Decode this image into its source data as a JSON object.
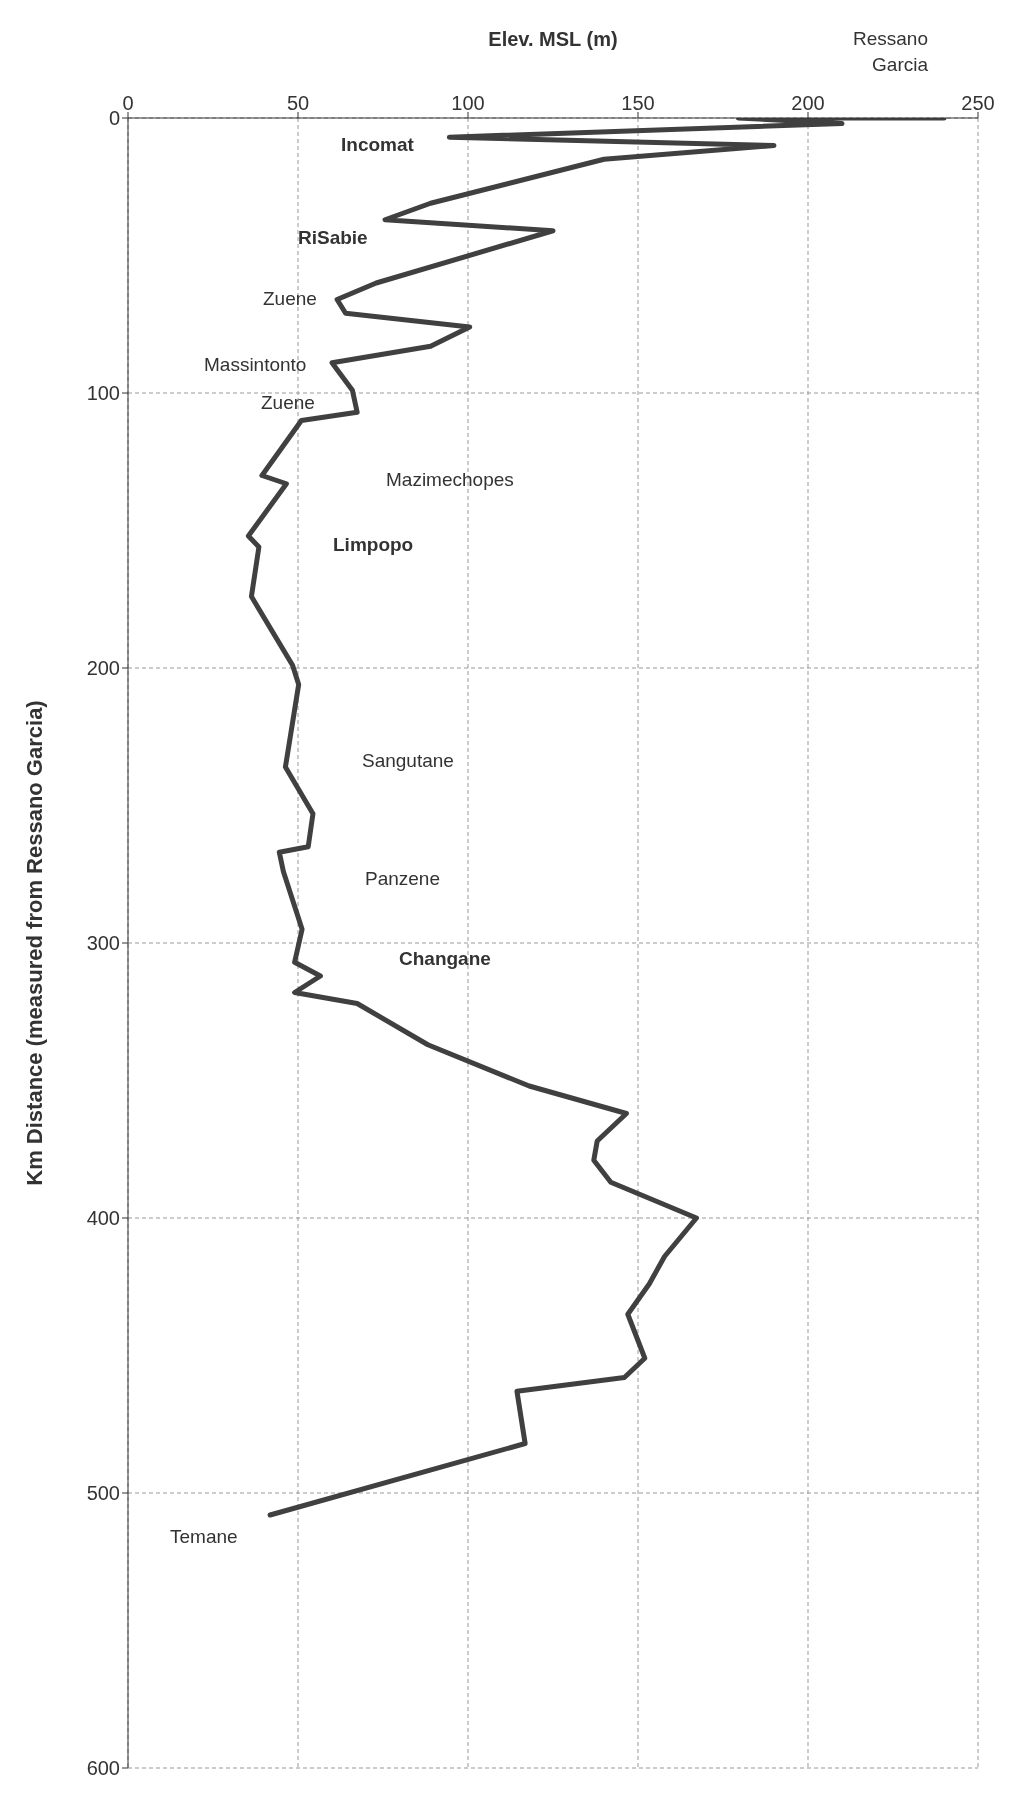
{
  "chart_data": {
    "type": "line",
    "xlabel": "Elev. MSL (m)",
    "ylabel": "Km Distance (measured from Ressano Garcia)",
    "xlim": [
      0,
      250
    ],
    "xticks": [
      0,
      50,
      100,
      150,
      200,
      250
    ],
    "ylim": [
      600,
      0
    ],
    "yticks": [
      0,
      100,
      200,
      300,
      400,
      500,
      600
    ],
    "grid": true,
    "line_style": "solid",
    "series": [
      {
        "color": "#404040",
        "x": [
          240,
          179.5,
          210,
          94.5,
          190,
          140,
          89,
          75.6,
          125,
          73,
          null,
          61.5,
          64,
          100.5,
          89,
          60,
          66,
          67.4,
          51,
          39.4,
          46.6,
          35.4,
          38.5,
          36.3,
          48.4,
          50.2,
          46.3,
          54.4,
          53,
          44.5,
          45.7,
          51.2,
          49,
          56.6,
          49,
          67.4,
          88.2,
          118,
          146.6,
          138,
          137,
          142,
          167.2,
          157.8,
          153.3,
          147,
          152,
          146,
          114.4,
          116.8,
          41.8
        ],
        "values": [
          0,
          0,
          2,
          7,
          10,
          15,
          31,
          37,
          41,
          60,
          null,
          66,
          71,
          76,
          83,
          89,
          99,
          107,
          110,
          130,
          133,
          152,
          156,
          174,
          199,
          206,
          236,
          253,
          265,
          267,
          274,
          295,
          307,
          312,
          318,
          322,
          337,
          352,
          362,
          372,
          379,
          387,
          400,
          414,
          424,
          435,
          451,
          458,
          463,
          482,
          508
        ]
      }
    ],
    "annotations": [
      "Ressano Garcia",
      "Incomat",
      "RiSabie",
      "Zuene",
      "Massintonto",
      "Zuene",
      "Mazimechopes",
      "Limpopo",
      "Sangutane",
      "Panzene",
      "Changane",
      "Temane"
    ]
  }
}
